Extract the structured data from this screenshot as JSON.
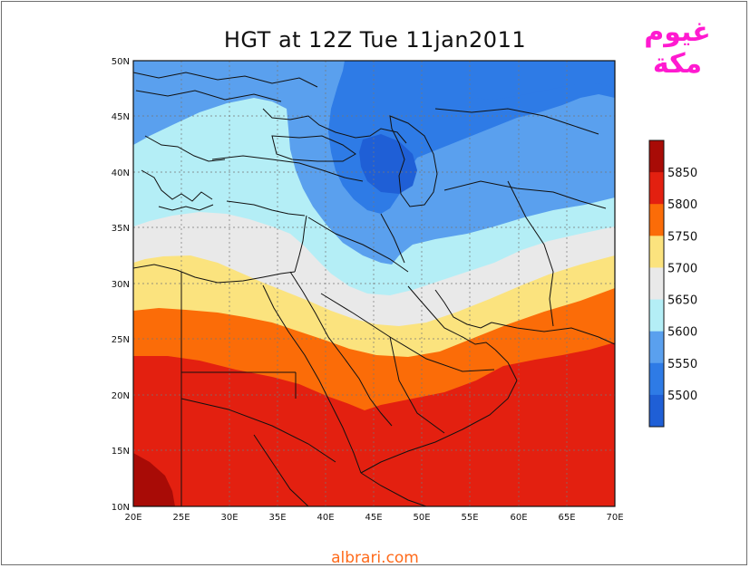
{
  "title": "HGT at 12Z Tue 11jan2011",
  "watermark": "غيوم مكة",
  "footer": "albrari.com",
  "icons": [
    "arabic-logo-watermark"
  ],
  "map": {
    "variable": "HGT",
    "lon_range": [
      20,
      70
    ],
    "lat_range": [
      10,
      50
    ],
    "lon_ticks": [
      "20E",
      "25E",
      "30E",
      "35E",
      "40E",
      "45E",
      "50E",
      "55E",
      "60E",
      "65E",
      "70E"
    ],
    "lat_ticks": [
      "10N",
      "15N",
      "20N",
      "25N",
      "30N",
      "35N",
      "40N",
      "45N",
      "50N"
    ],
    "gridlines": true,
    "contour_levels": [
      5500,
      5550,
      5600,
      5650,
      5700,
      5750,
      5800,
      5850
    ],
    "color_scale": [
      "#1f5fd6",
      "#2e7be6",
      "#5aa0ee",
      "#b4eef6",
      "#e9e9e9",
      "#fbe37e",
      "#fb6c08",
      "#e32010",
      "#a80b06"
    ]
  },
  "legend": {
    "labels": [
      "5850",
      "5800",
      "5750",
      "5700",
      "5650",
      "5600",
      "5550",
      "5500"
    ],
    "colors": [
      "#a80b06",
      "#e32010",
      "#fb6c08",
      "#fbe37e",
      "#e9e9e9",
      "#b4eef6",
      "#5aa0ee",
      "#2e7be6",
      "#1f5fd6"
    ]
  }
}
